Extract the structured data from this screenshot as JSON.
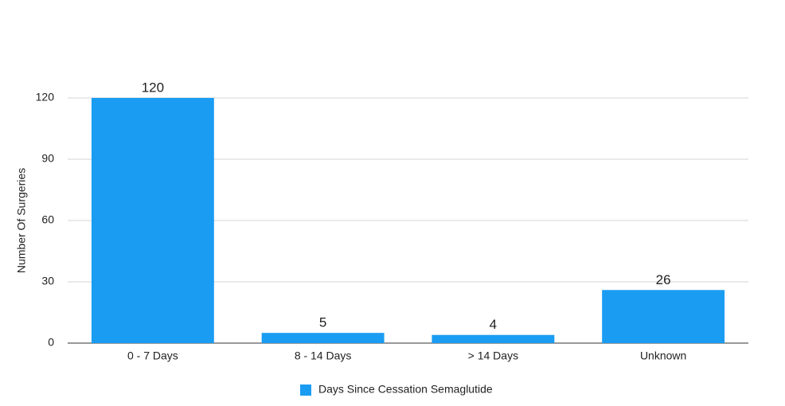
{
  "chart_data": {
    "type": "bar",
    "y_axis_label": "Number Of Surgeries",
    "categories": [
      "0 - 7 Days",
      "8 - 14 Days",
      "> 14 Days",
      "Unknown"
    ],
    "series": [
      {
        "name": "Days Since Cessation Semaglutide",
        "color": "#1a9cf2",
        "values": [
          120,
          5,
          4,
          26
        ]
      }
    ],
    "ylim": [
      0,
      120
    ],
    "yticks": [
      0,
      30,
      60,
      90,
      120
    ],
    "grid": true,
    "data_labels": true,
    "legend": "bottom"
  }
}
